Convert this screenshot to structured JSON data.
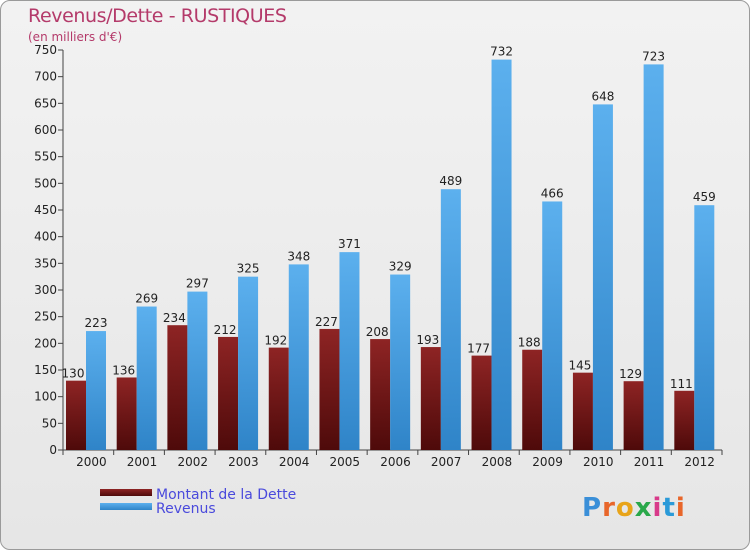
{
  "header": {
    "title": "Revenus/Dette - RUSTIQUES",
    "subtitle": "(en milliers d'€)"
  },
  "logo": {
    "text": "Proxiti"
  },
  "colors": {
    "dette": "#7a1a1a",
    "revenus": "#4aa3e6",
    "title": "#b43a6a",
    "legend_text": "#4a4adc"
  },
  "chart_data": {
    "type": "bar",
    "title": "Revenus/Dette - RUSTIQUES",
    "subtitle": "(en milliers d'€)",
    "xlabel": "",
    "ylabel": "",
    "ylim": [
      0,
      750
    ],
    "ytick_step": 50,
    "grid": false,
    "legend_position": "bottom-left",
    "categories": [
      "2000",
      "2001",
      "2002",
      "2003",
      "2004",
      "2005",
      "2006",
      "2007",
      "2008",
      "2009",
      "2010",
      "2011",
      "2012"
    ],
    "series": [
      {
        "name": "Montant de la Dette",
        "color": "#7a1a1a",
        "values": [
          130,
          136,
          234,
          212,
          192,
          227,
          208,
          193,
          177,
          188,
          145,
          129,
          111
        ]
      },
      {
        "name": "Revenus",
        "color": "#4aa3e6",
        "values": [
          223,
          269,
          297,
          325,
          348,
          371,
          329,
          489,
          732,
          466,
          648,
          723,
          459
        ]
      }
    ]
  }
}
